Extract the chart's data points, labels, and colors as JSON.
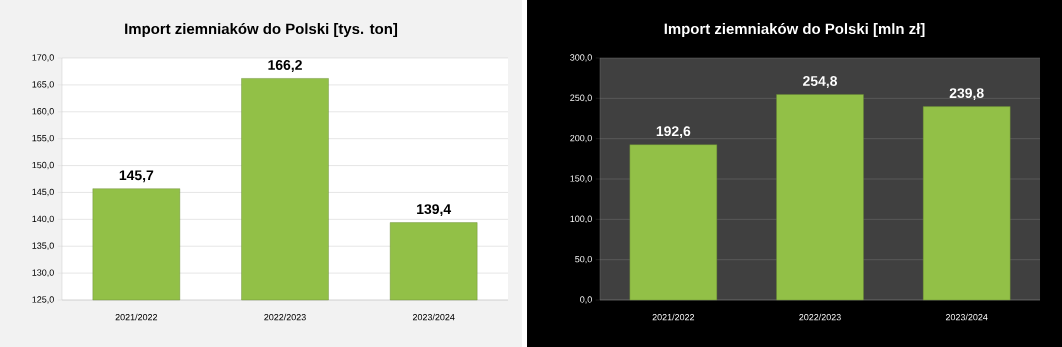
{
  "chart_data": [
    {
      "type": "bar",
      "title": "Import ziemniaków  do Polski  [tys. ton]",
      "categories": [
        "2021/2022",
        "2022/2023",
        "2023/2024"
      ],
      "values": [
        145.7,
        166.2,
        139.4
      ],
      "value_labels": [
        "145,7",
        "166,2",
        "139,4"
      ],
      "color": "#92c047",
      "ylim": [
        125,
        170
      ],
      "yticks": [
        {
          "value": 125,
          "label": "125,0"
        },
        {
          "value": 130,
          "label": "130,0"
        },
        {
          "value": 135,
          "label": "135,0"
        },
        {
          "value": 140,
          "label": "140,0"
        },
        {
          "value": 145,
          "label": "145,0"
        },
        {
          "value": 150,
          "label": "150,0"
        },
        {
          "value": 155,
          "label": "155,0"
        },
        {
          "value": 160,
          "label": "160,0"
        },
        {
          "value": 165,
          "label": "165,0"
        },
        {
          "value": 170,
          "label": "170,0"
        }
      ],
      "grid": "y"
    },
    {
      "type": "bar",
      "title": "Import ziemniaków  do Polski  [mln zł]",
      "categories": [
        "2021/2022",
        "2022/2023",
        "2023/2024"
      ],
      "values": [
        192.6,
        254.8,
        239.8
      ],
      "value_labels": [
        "192,6",
        "254,8",
        "239,8"
      ],
      "color": "#92c047",
      "ylim": [
        0,
        300
      ],
      "yticks": [
        {
          "value": 0,
          "label": "0,0"
        },
        {
          "value": 50,
          "label": "50,0"
        },
        {
          "value": 100,
          "label": "100,0"
        },
        {
          "value": 150,
          "label": "150,0"
        },
        {
          "value": 200,
          "label": "200,0"
        },
        {
          "value": 250,
          "label": "250,0"
        },
        {
          "value": 300,
          "label": "300,0"
        }
      ],
      "grid": "y"
    }
  ]
}
